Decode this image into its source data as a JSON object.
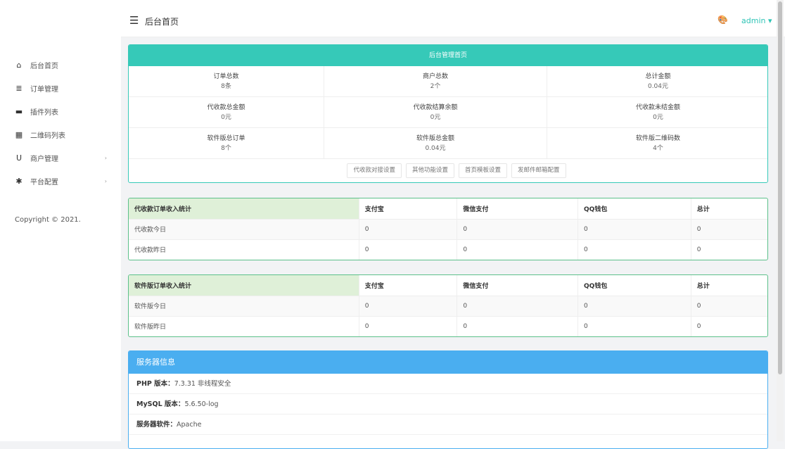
{
  "header": {
    "title": "后台首页",
    "user": "admin"
  },
  "sidebar": {
    "items": [
      {
        "label": "后台首页",
        "icon": "home-icon",
        "arrow": false
      },
      {
        "label": "订单管理",
        "icon": "list-icon",
        "arrow": false
      },
      {
        "label": "插件列表",
        "icon": "plugin-icon",
        "arrow": false
      },
      {
        "label": "二维码列表",
        "icon": "qrcode-icon",
        "arrow": false
      },
      {
        "label": "商户管理",
        "icon": "magnet-icon",
        "arrow": true
      },
      {
        "label": "平台配置",
        "icon": "gear-icon",
        "arrow": true
      }
    ],
    "copyright": "Copyright © 2021."
  },
  "overview": {
    "title": "后台管理首页",
    "stats": [
      {
        "label": "订单总数",
        "value": "8条"
      },
      {
        "label": "商户总数",
        "value": "2个"
      },
      {
        "label": "总计金额",
        "value": "0.04元"
      },
      {
        "label": "代收款总金额",
        "value": "0元"
      },
      {
        "label": "代收款结算余额",
        "value": "0元"
      },
      {
        "label": "代收款未结金额",
        "value": "0元"
      },
      {
        "label": "软件版总订单",
        "value": "8个"
      },
      {
        "label": "软件版总金额",
        "value": "0.04元"
      },
      {
        "label": "软件版二维码数",
        "value": "4个"
      }
    ],
    "buttons": [
      "代收款对接设置",
      "其他功能设置",
      "首页模板设置",
      "发邮件邮箱配置"
    ]
  },
  "tables": [
    {
      "headers": [
        "代收款订单收入统计",
        "支付宝",
        "微信支付",
        "QQ钱包",
        "总计"
      ],
      "rows": [
        [
          "代收款今日",
          "0",
          "0",
          "0",
          "0"
        ],
        [
          "代收款昨日",
          "0",
          "0",
          "0",
          "0"
        ]
      ]
    },
    {
      "headers": [
        "软件版订单收入统计",
        "支付宝",
        "微信支付",
        "QQ钱包",
        "总计"
      ],
      "rows": [
        [
          "软件版今日",
          "0",
          "0",
          "0",
          "0"
        ],
        [
          "软件版昨日",
          "0",
          "0",
          "0",
          "0"
        ]
      ]
    }
  ],
  "server": {
    "title": "服务器信息",
    "rows": [
      {
        "label": "PHP 版本：",
        "value": "7.3.31 非线程安全"
      },
      {
        "label": "MySQL 版本：",
        "value": "5.6.50-log"
      },
      {
        "label": "服务器软件：",
        "value": "Apache"
      }
    ]
  }
}
